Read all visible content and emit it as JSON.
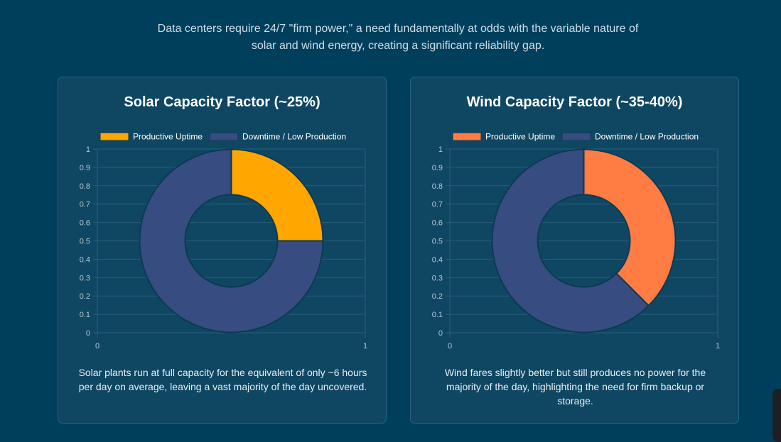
{
  "intro": {
    "line1": "Data centers require 24/7 \"firm power,\" a need fundamentally at odds with the variable nature of",
    "line2": "solar and wind energy, creating a significant reliability gap."
  },
  "colors": {
    "solar": "#ffa600",
    "wind": "#ff7c43",
    "downtime": "#374c80",
    "grid": "#2c5d78",
    "tick": "#b8c7d1"
  },
  "chart_data": [
    {
      "type": "pie",
      "variant": "doughnut",
      "title": "Solar Capacity Factor (~25%)",
      "categories": [
        "Productive Uptime",
        "Downtime / Low Production"
      ],
      "values": [
        25,
        75
      ],
      "legend_position": "top",
      "yticks": [
        "1",
        "0.9",
        "0.8",
        "0.7",
        "0.6",
        "0.5",
        "0.4",
        "0.3",
        "0.2",
        "0.1",
        "0"
      ],
      "xticks": [
        "0",
        "1"
      ],
      "ylim": [
        0,
        1
      ],
      "xlim": [
        0,
        1
      ],
      "grid": true,
      "caption": "Solar plants run at full capacity for the equivalent of only ~6 hours per day on average, leaving a vast majority of the day uncovered."
    },
    {
      "type": "pie",
      "variant": "doughnut",
      "title": "Wind Capacity Factor (~35-40%)",
      "categories": [
        "Productive Uptime",
        "Downtime / Low Production"
      ],
      "values": [
        37.5,
        62.5
      ],
      "legend_position": "top",
      "yticks": [
        "1",
        "0.9",
        "0.8",
        "0.7",
        "0.6",
        "0.5",
        "0.4",
        "0.3",
        "0.2",
        "0.1",
        "0"
      ],
      "xticks": [
        "0",
        "1"
      ],
      "ylim": [
        0,
        1
      ],
      "xlim": [
        0,
        1
      ],
      "grid": true,
      "caption": "Wind fares slightly better but still produces no power for the majority of the day, highlighting the need for firm backup or storage."
    }
  ]
}
